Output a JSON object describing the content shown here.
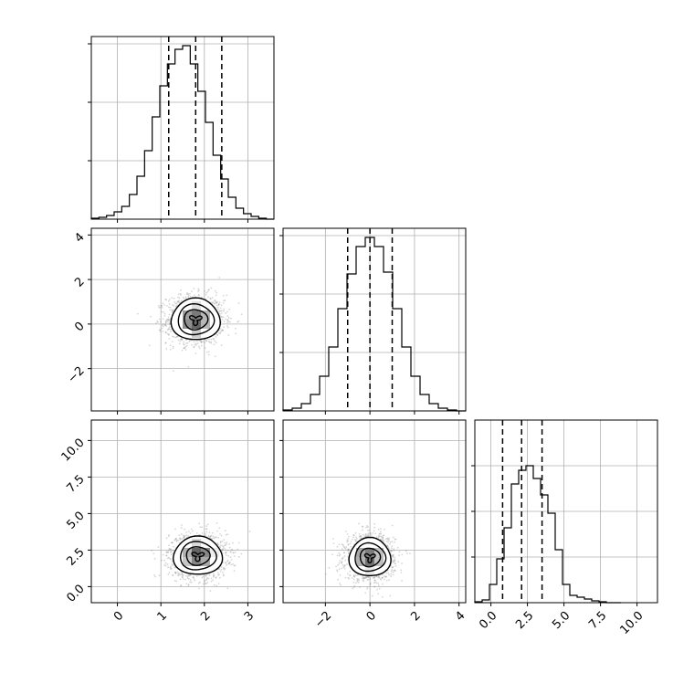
{
  "chart_data": {
    "type": "corner",
    "grid": true,
    "tick_labels": {
      "x1": [
        "0",
        "1",
        "2",
        "3"
      ],
      "x2": [
        "−2",
        "0",
        "2",
        "4"
      ],
      "x3": [
        "0.0",
        "2.5",
        "5.0",
        "7.5",
        "10.0"
      ],
      "y2": [
        "−2",
        "0",
        "2",
        "4"
      ],
      "y3": [
        "0.0",
        "2.5",
        "5.0",
        "7.5",
        "10.0"
      ]
    },
    "params": [
      {
        "range": [
          -0.6,
          3.6
        ],
        "ticks": [
          0,
          1,
          2,
          3
        ],
        "quantiles": [
          1.18,
          1.8,
          2.4
        ],
        "hist_bins": [
          -0.6,
          3.6
        ],
        "hist_counts": [
          1,
          2,
          4,
          8,
          14,
          27,
          47,
          75,
          112,
          146,
          170,
          186,
          190,
          170,
          140,
          106,
          70,
          44,
          24,
          12,
          6,
          3,
          1,
          0
        ],
        "hist_ylim": [
          0,
          200
        ],
        "hist_ticks": [
          64,
          128,
          192
        ]
      },
      {
        "range": [
          -3.9,
          4.3
        ],
        "ticks": [
          -2,
          0,
          2,
          4
        ],
        "quantiles": [
          -1.0,
          0.0,
          1.0
        ],
        "hist_bins": [
          -3.9,
          4.3
        ],
        "hist_counts": [
          1,
          3,
          8,
          18,
          38,
          70,
          112,
          150,
          180,
          190,
          180,
          152,
          112,
          70,
          38,
          18,
          8,
          3,
          1,
          0
        ],
        "hist_ylim": [
          0,
          200
        ],
        "hist_ticks": [
          64,
          128,
          192
        ]
      },
      {
        "range": [
          -1.1,
          11.4
        ],
        "ticks": [
          0,
          2.5,
          5,
          7.5,
          10
        ],
        "quantiles": [
          0.8,
          2.1,
          3.5
        ],
        "hist_bins": [
          -1.1,
          8.9
        ],
        "hist_counts": [
          1,
          3,
          20,
          48,
          82,
          130,
          145,
          150,
          136,
          118,
          98,
          58,
          20,
          8,
          6,
          4,
          2,
          1,
          0,
          0
        ],
        "hist_ylim": [
          0,
          200
        ],
        "hist_ticks": [
          50,
          100,
          150
        ]
      }
    ],
    "pairs": [
      {
        "x": 0,
        "y": 1,
        "center": [
          1.8,
          0.2
        ],
        "spread": [
          0.6,
          1.0
        ],
        "levels": [
          1.7,
          1.25,
          0.82,
          0.3
        ]
      },
      {
        "x": 0,
        "y": 2,
        "center": [
          1.85,
          2.1
        ],
        "spread": [
          0.6,
          1.4
        ],
        "levels": [
          1.7,
          1.25,
          0.82,
          0.3
        ]
      },
      {
        "x": 1,
        "y": 2,
        "center": [
          0.0,
          2.0
        ],
        "spread": [
          1.0,
          1.4
        ],
        "levels": [
          1.7,
          1.25,
          0.82,
          0.3
        ]
      }
    ]
  }
}
